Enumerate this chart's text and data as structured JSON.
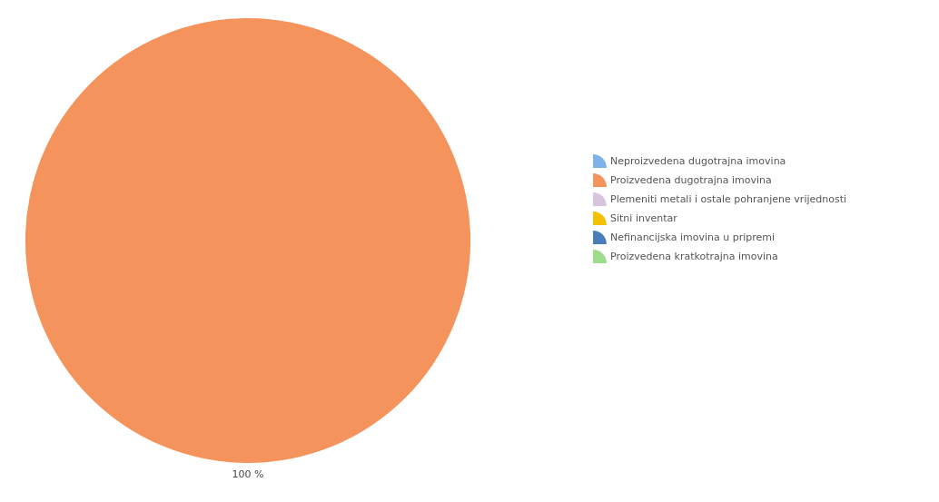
{
  "chart_data": {
    "type": "pie",
    "categories": [
      "Neproizvedena dugotrajna imovina",
      "Proizvedena dugotrajna imovina",
      "Plemeniti metali i ostale pohranjene vrijednosti",
      "Sitni inventar",
      "Nefinancijska imovina u pripremi",
      "Proizvedena kratkotrajna imovina"
    ],
    "values": [
      0,
      100,
      0,
      0,
      0,
      0
    ],
    "colors": [
      "#7fb2ea",
      "#f5935c",
      "#d9c4e0",
      "#f2c100",
      "#4a7ebb",
      "#9ddc8c"
    ],
    "value_labels": [
      null,
      "100 %",
      null,
      null,
      null,
      null
    ],
    "legend": "right"
  }
}
